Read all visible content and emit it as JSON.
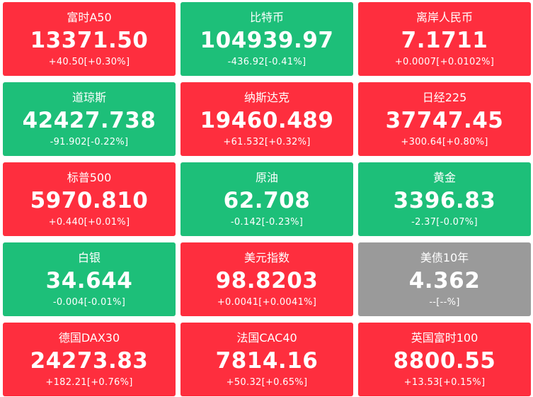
{
  "colors": {
    "up": "#fe2e3e",
    "down": "#1dbf79",
    "flat": "#9a9a9a",
    "text": "#ffffff"
  },
  "tiles": [
    {
      "name": "富时A50",
      "price": "13371.50",
      "change": "+40.50[+0.30%]",
      "trend": "up"
    },
    {
      "name": "比特币",
      "price": "104939.97",
      "change": "-436.92[-0.41%]",
      "trend": "down"
    },
    {
      "name": "离岸人民币",
      "price": "7.1711",
      "change": "+0.0007[+0.0102%]",
      "trend": "up"
    },
    {
      "name": "道琼斯",
      "price": "42427.738",
      "change": "-91.902[-0.22%]",
      "trend": "down"
    },
    {
      "name": "纳斯达克",
      "price": "19460.489",
      "change": "+61.532[+0.32%]",
      "trend": "up"
    },
    {
      "name": "日经225",
      "price": "37747.45",
      "change": "+300.64[+0.80%]",
      "trend": "up"
    },
    {
      "name": "标普500",
      "price": "5970.810",
      "change": "+0.440[+0.01%]",
      "trend": "up"
    },
    {
      "name": "原油",
      "price": "62.708",
      "change": "-0.142[-0.23%]",
      "trend": "down"
    },
    {
      "name": "黄金",
      "price": "3396.83",
      "change": "-2.37[-0.07%]",
      "trend": "down"
    },
    {
      "name": "白银",
      "price": "34.644",
      "change": "-0.004[-0.01%]",
      "trend": "down"
    },
    {
      "name": "美元指数",
      "price": "98.8203",
      "change": "+0.0041[+0.0041%]",
      "trend": "up"
    },
    {
      "name": "美债10年",
      "price": "4.362",
      "change": "--[--%]",
      "trend": "flat"
    },
    {
      "name": "德国DAX30",
      "price": "24273.83",
      "change": "+182.21[+0.76%]",
      "trend": "up"
    },
    {
      "name": "法国CAC40",
      "price": "7814.16",
      "change": "+50.32[+0.65%]",
      "trend": "up"
    },
    {
      "name": "英国富时100",
      "price": "8800.55",
      "change": "+13.53[+0.15%]",
      "trend": "up"
    }
  ]
}
